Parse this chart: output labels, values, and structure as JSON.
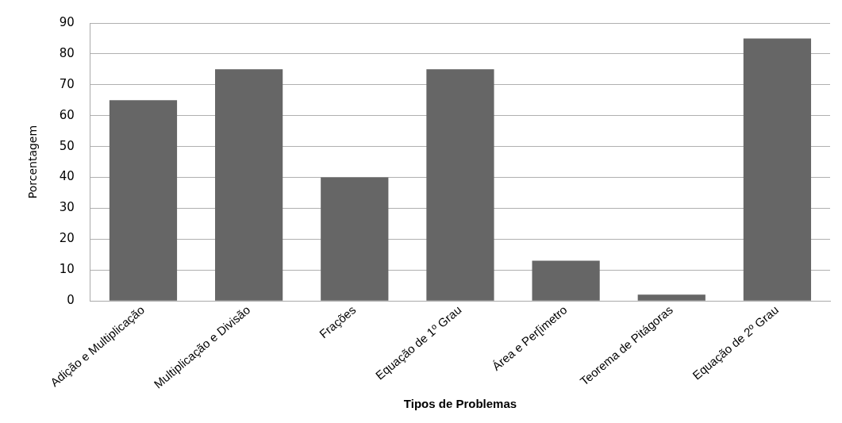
{
  "chart_data": {
    "type": "bar",
    "xlabel": "Tipos de Problemas",
    "ylabel": "Porcentagem",
    "categories": [
      "Adição e Multiplicação",
      "Multiplicação e Divisão",
      "Frações",
      "Equação de 1º Grau",
      "Área e Per[imetro",
      "Teorema de Pitágoras",
      "Equação de 2º Grau"
    ],
    "values": [
      65,
      75,
      40,
      75,
      13,
      2,
      85
    ],
    "color": "#666666",
    "ylim": [
      0,
      90
    ],
    "yticks": [
      0,
      10,
      20,
      30,
      40,
      50,
      60,
      70,
      80,
      90
    ],
    "grid": "y",
    "legend": false
  }
}
